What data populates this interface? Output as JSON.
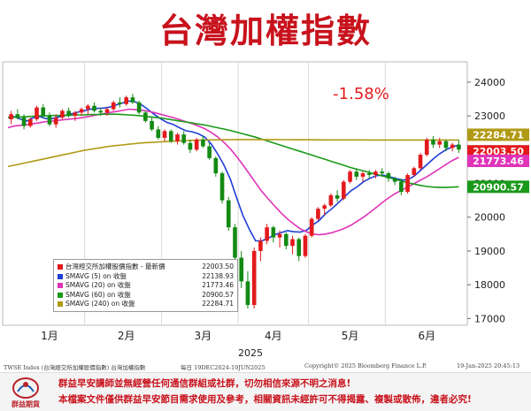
{
  "title": "台灣加權指數",
  "chart_data": {
    "type": "line",
    "title": "台灣加權指數",
    "annotation": "-1.58%",
    "xlabel": "2025",
    "x_tick_labels": [
      "1月",
      "2月",
      "3月",
      "4月",
      "5月",
      "6月"
    ],
    "ylim": [
      16800,
      24600
    ],
    "y_ticks": [
      17000,
      18000,
      19000,
      20000,
      21000,
      22000,
      23000,
      24000
    ],
    "grid": "vertical",
    "legend_position": "bottom-left",
    "candles": [
      {
        "o": 22900,
        "h": 23150,
        "l": 22750,
        "c": 23050
      },
      {
        "o": 23050,
        "h": 23200,
        "l": 22900,
        "c": 22950
      },
      {
        "o": 22950,
        "h": 23050,
        "l": 22600,
        "c": 22700
      },
      {
        "o": 22700,
        "h": 22950,
        "l": 22650,
        "c": 22900
      },
      {
        "o": 22900,
        "h": 23300,
        "l": 22850,
        "c": 23250
      },
      {
        "o": 23250,
        "h": 23350,
        "l": 22950,
        "c": 23000
      },
      {
        "o": 23000,
        "h": 23100,
        "l": 22700,
        "c": 22750
      },
      {
        "o": 22750,
        "h": 23050,
        "l": 22650,
        "c": 22950
      },
      {
        "o": 22950,
        "h": 23200,
        "l": 22900,
        "c": 23150
      },
      {
        "o": 23150,
        "h": 23250,
        "l": 22950,
        "c": 23000
      },
      {
        "o": 23000,
        "h": 23150,
        "l": 22850,
        "c": 23100
      },
      {
        "o": 23100,
        "h": 23250,
        "l": 23000,
        "c": 23200
      },
      {
        "o": 23200,
        "h": 23350,
        "l": 23050,
        "c": 23300
      },
      {
        "o": 23300,
        "h": 23400,
        "l": 23100,
        "c": 23150
      },
      {
        "o": 23150,
        "h": 23250,
        "l": 23000,
        "c": 23100
      },
      {
        "o": 23100,
        "h": 23250,
        "l": 23000,
        "c": 23200
      },
      {
        "o": 23200,
        "h": 23450,
        "l": 23150,
        "c": 23400
      },
      {
        "o": 23400,
        "h": 23550,
        "l": 23250,
        "c": 23350
      },
      {
        "o": 23350,
        "h": 23600,
        "l": 23300,
        "c": 23550
      },
      {
        "o": 23550,
        "h": 23650,
        "l": 23350,
        "c": 23400
      },
      {
        "o": 23400,
        "h": 23450,
        "l": 23050,
        "c": 23100
      },
      {
        "o": 23100,
        "h": 23150,
        "l": 22800,
        "c": 22850
      },
      {
        "o": 22850,
        "h": 22950,
        "l": 22550,
        "c": 22600
      },
      {
        "o": 22600,
        "h": 22700,
        "l": 22300,
        "c": 22350
      },
      {
        "o": 22350,
        "h": 22600,
        "l": 22250,
        "c": 22550
      },
      {
        "o": 22550,
        "h": 22600,
        "l": 22200,
        "c": 22250
      },
      {
        "o": 22250,
        "h": 22500,
        "l": 22150,
        "c": 22450
      },
      {
        "o": 22450,
        "h": 22550,
        "l": 22150,
        "c": 22200
      },
      {
        "o": 22200,
        "h": 22300,
        "l": 21900,
        "c": 22000
      },
      {
        "o": 22000,
        "h": 22350,
        "l": 21950,
        "c": 22300
      },
      {
        "o": 22300,
        "h": 22400,
        "l": 22050,
        "c": 22100
      },
      {
        "o": 22100,
        "h": 22200,
        "l": 21700,
        "c": 21750
      },
      {
        "o": 21750,
        "h": 21800,
        "l": 21200,
        "c": 21300
      },
      {
        "o": 21300,
        "h": 21350,
        "l": 20400,
        "c": 20500
      },
      {
        "o": 20500,
        "h": 20600,
        "l": 19600,
        "c": 19700
      },
      {
        "o": 19700,
        "h": 19800,
        "l": 18700,
        "c": 18800
      },
      {
        "o": 18800,
        "h": 19000,
        "l": 17900,
        "c": 18100
      },
      {
        "o": 18100,
        "h": 18400,
        "l": 17300,
        "c": 17400
      },
      {
        "o": 17400,
        "h": 19100,
        "l": 17300,
        "c": 19000
      },
      {
        "o": 19000,
        "h": 19400,
        "l": 18700,
        "c": 19300
      },
      {
        "o": 19300,
        "h": 19800,
        "l": 19200,
        "c": 19700
      },
      {
        "o": 19700,
        "h": 19750,
        "l": 19250,
        "c": 19400
      },
      {
        "o": 19400,
        "h": 19600,
        "l": 19100,
        "c": 19500
      },
      {
        "o": 19500,
        "h": 19550,
        "l": 19050,
        "c": 19150
      },
      {
        "o": 19150,
        "h": 19450,
        "l": 18900,
        "c": 19350
      },
      {
        "o": 19350,
        "h": 19400,
        "l": 18700,
        "c": 18850
      },
      {
        "o": 18850,
        "h": 19500,
        "l": 18800,
        "c": 19450
      },
      {
        "o": 19450,
        "h": 20000,
        "l": 19400,
        "c": 19950
      },
      {
        "o": 19950,
        "h": 20300,
        "l": 19900,
        "c": 20250
      },
      {
        "o": 20250,
        "h": 20400,
        "l": 20050,
        "c": 20350
      },
      {
        "o": 20350,
        "h": 20700,
        "l": 20300,
        "c": 20650
      },
      {
        "o": 20650,
        "h": 20800,
        "l": 20450,
        "c": 20550
      },
      {
        "o": 20550,
        "h": 21100,
        "l": 20500,
        "c": 21050
      },
      {
        "o": 21050,
        "h": 21400,
        "l": 21000,
        "c": 21350
      },
      {
        "o": 21350,
        "h": 21450,
        "l": 21100,
        "c": 21200
      },
      {
        "o": 21200,
        "h": 21350,
        "l": 21050,
        "c": 21300
      },
      {
        "o": 21300,
        "h": 21400,
        "l": 21150,
        "c": 21250
      },
      {
        "o": 21250,
        "h": 21400,
        "l": 21150,
        "c": 21350
      },
      {
        "o": 21350,
        "h": 21450,
        "l": 21200,
        "c": 21300
      },
      {
        "o": 21300,
        "h": 21350,
        "l": 21050,
        "c": 21150
      },
      {
        "o": 21150,
        "h": 21200,
        "l": 20950,
        "c": 21050
      },
      {
        "o": 21050,
        "h": 21150,
        "l": 20650,
        "c": 20750
      },
      {
        "o": 20750,
        "h": 21300,
        "l": 20700,
        "c": 21250
      },
      {
        "o": 21250,
        "h": 21500,
        "l": 21200,
        "c": 21450
      },
      {
        "o": 21450,
        "h": 21900,
        "l": 21400,
        "c": 21850
      },
      {
        "o": 21850,
        "h": 22350,
        "l": 21800,
        "c": 22300
      },
      {
        "o": 22300,
        "h": 22400,
        "l": 22050,
        "c": 22150
      },
      {
        "o": 22150,
        "h": 22350,
        "l": 22050,
        "c": 22250
      },
      {
        "o": 22250,
        "h": 22300,
        "l": 21950,
        "c": 22050
      },
      {
        "o": 22050,
        "h": 22200,
        "l": 21950,
        "c": 22150
      },
      {
        "o": 22150,
        "h": 22300,
        "l": 21900,
        "c": 22003.5
      }
    ],
    "series": [
      {
        "name": "台灣經交所加權股價指數 - 最新價",
        "last": "22003.50",
        "color": "#e31a1c"
      },
      {
        "name": "SMAVG (5)  on 收盤",
        "last": "22138.93",
        "color": "#1f3fd6",
        "values": [
          22950,
          22980,
          22900,
          22850,
          22950,
          22980,
          22920,
          22920,
          22970,
          23010,
          23060,
          23110,
          23150,
          23200,
          23220,
          23230,
          23260,
          23320,
          23380,
          23440,
          23420,
          23330,
          23200,
          23050,
          22920,
          22810,
          22750,
          22650,
          22560,
          22530,
          22470,
          22370,
          22170,
          21880,
          21550,
          21140,
          20580,
          20050,
          19650,
          19300,
          19300,
          19380,
          19480,
          19540,
          19600,
          19570,
          19560,
          19610,
          19770,
          19900,
          20100,
          20250,
          20420,
          20600,
          20780,
          20900,
          21050,
          21150,
          21230,
          21250,
          21200,
          21150,
          21100,
          21110,
          21220,
          21390,
          21560,
          21730,
          21880,
          22000,
          22080,
          22138.93
        ]
      },
      {
        "name": "SMAVG (20) on 收盤",
        "last": "21773.46",
        "color": "#e033b8",
        "values": [
          22650,
          22700,
          22720,
          22740,
          22770,
          22800,
          22830,
          22850,
          22870,
          22890,
          22910,
          22930,
          22960,
          22990,
          23030,
          23060,
          23100,
          23130,
          23160,
          23200,
          23190,
          23170,
          23140,
          23100,
          23050,
          23000,
          22950,
          22890,
          22830,
          22770,
          22700,
          22620,
          22510,
          22380,
          22220,
          22030,
          21800,
          21550,
          21290,
          21020,
          20760,
          20540,
          20330,
          20130,
          19950,
          19800,
          19660,
          19570,
          19500,
          19480,
          19500,
          19540,
          19600,
          19670,
          19760,
          19880,
          20000,
          20140,
          20290,
          20440,
          20580,
          20700,
          20800,
          20900,
          21000,
          21100,
          21200,
          21320,
          21440,
          21560,
          21680,
          21773.46
        ]
      },
      {
        "name": "SMAVG (60) on 收盤",
        "last": "20900.57",
        "color": "#1a9a1a",
        "values": [
          22950,
          22960,
          22970,
          22980,
          22990,
          23000,
          23000,
          23010,
          23010,
          23020,
          23020,
          23030,
          23030,
          23040,
          23040,
          23050,
          23050,
          23050,
          23040,
          23030,
          23020,
          23000,
          22980,
          22960,
          22940,
          22910,
          22880,
          22850,
          22820,
          22790,
          22760,
          22730,
          22690,
          22650,
          22610,
          22570,
          22520,
          22470,
          22420,
          22370,
          22310,
          22250,
          22190,
          22130,
          22070,
          22010,
          21950,
          21890,
          21830,
          21770,
          21710,
          21650,
          21590,
          21530,
          21470,
          21420,
          21370,
          21320,
          21270,
          21220,
          21170,
          21120,
          21070,
          21020,
          20980,
          20940,
          20910,
          20890,
          20880,
          20880,
          20890,
          20900.57
        ]
      },
      {
        "name": "SMAVG (240) on 收盤",
        "last": "22284.71",
        "color": "#b09a14",
        "values": [
          21500,
          21540,
          21580,
          21620,
          21660,
          21700,
          21740,
          21780,
          21820,
          21860,
          21900,
          21940,
          21980,
          22010,
          22040,
          22070,
          22100,
          22120,
          22140,
          22160,
          22180,
          22200,
          22210,
          22220,
          22230,
          22240,
          22250,
          22260,
          22270,
          22275,
          22280,
          22285,
          22290,
          22292,
          22294,
          22296,
          22298,
          22300,
          22300,
          22300,
          22300,
          22299,
          22298,
          22297,
          22296,
          22295,
          22294,
          22293,
          22292,
          22291,
          22290,
          22290,
          22290,
          22289,
          22289,
          22288,
          22288,
          22287,
          22287,
          22286,
          22286,
          22286,
          22285,
          22285,
          22285,
          22285,
          22285,
          22285,
          22285,
          22285,
          22285,
          22284.71
        ]
      }
    ],
    "right_labels": [
      {
        "text": "22284.71",
        "bg": "#b09a14"
      },
      {
        "text": "22003.50",
        "bg": "#e31a1c"
      },
      {
        "text": "21773.46",
        "bg": "#e033b8"
      },
      {
        "text": "20900.57",
        "bg": "#1a9a1a"
      }
    ]
  },
  "footer": {
    "left": "TWSE Index (台灣經交所加權股價指數) 台灣加權指數",
    "period": "每日 19DEC2024-19JUN2025",
    "copyright": "Copyright© 2025 Bloomberg Finance L.P.",
    "timestamp": "19-Jan-2025 20:45:13"
  },
  "logo": "群益期貨",
  "disclaimer": {
    "line1": "群益早安講師並無經營任何通信群組或社群，切勿相信來源不明之消息!",
    "line2": "本檔案文件僅供群益早安節目需求使用及參考，相關資訊未經許可不得揭露、複製或散佈，違者必究!"
  },
  "colors": {
    "up": "#e31a1c",
    "down": "#138a13",
    "brand": "#c8121c"
  }
}
